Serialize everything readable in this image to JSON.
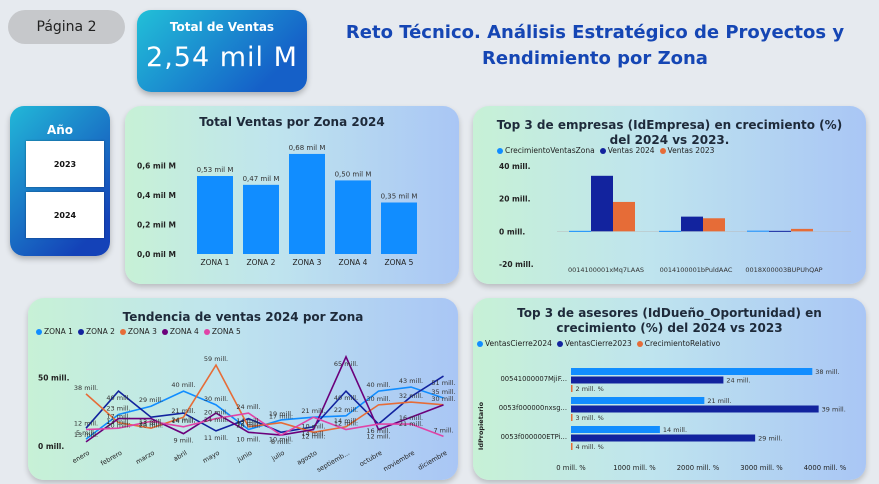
{
  "page_tab": "Página 2",
  "kpi": {
    "label": "Total de Ventas",
    "value": "2,54 mil M"
  },
  "title_line1": "Reto Técnico. Análisis Estratégico de Proyectos y",
  "title_line2": "Rendimiento por Zona",
  "year_slicer": {
    "label": "Año",
    "options": [
      "2023",
      "2024"
    ]
  },
  "colors": {
    "bar": "#118dff",
    "zona1": "#118dff",
    "zona2": "#12239e",
    "zona3": "#e66c37",
    "zona4": "#6b007b",
    "zona5": "#e044a7",
    "top_blue": "#118dff",
    "top_navy": "#12239e",
    "top_orange": "#e66c37"
  },
  "chart_data": [
    {
      "type": "bar",
      "title": "Total Ventas por Zona 2024",
      "categories": [
        "ZONA 1",
        "ZONA 2",
        "ZONA 3",
        "ZONA 4",
        "ZONA 5"
      ],
      "values": [
        0.53,
        0.47,
        0.68,
        0.5,
        0.35
      ],
      "data_labels": [
        "0,53 mil M",
        "0,47 mil M",
        "0,68 mil M",
        "0,50 mil M",
        "0,35 mil M"
      ],
      "yticks": [
        "0,6 mil M",
        "0,4 mil M",
        "0,2 mil M",
        "0,0 mil M"
      ],
      "ylim": [
        0,
        0.7
      ]
    },
    {
      "type": "bar",
      "title": "Top 3 de empresas (IdEmpresa) en crecimiento (%) del 2024 vs 2023.",
      "categories": [
        "0014100001xMq7LAAS",
        "0014100001bPuldAAC",
        "0018X00003BUPUhQAP"
      ],
      "series": [
        {
          "name": "CrecimientoVentasZona",
          "values": [
            0.3,
            0.3,
            0.4
          ]
        },
        {
          "name": "Ventas 2024",
          "values": [
            34,
            9,
            0.3
          ]
        },
        {
          "name": "Ventas 2023",
          "values": [
            18,
            8,
            1.5
          ]
        }
      ],
      "yticks": [
        "40 mill.",
        "20 mill.",
        "0 mill.",
        "-20 mill."
      ],
      "ylim": [
        -20,
        40
      ]
    },
    {
      "type": "line",
      "title": "Tendencia de ventas 2024 por Zona",
      "categories": [
        "enero",
        "febrero",
        "marzo",
        "abril",
        "mayo",
        "junio",
        "julio",
        "agosto",
        "septiemb...",
        "octubre",
        "noviembre",
        "diciembre"
      ],
      "series": [
        {
          "name": "ZONA 1",
          "values": [
            5,
            23,
            29,
            40,
            30,
            12,
            19,
            21,
            22,
            40,
            43,
            35
          ]
        },
        {
          "name": "ZONA 2",
          "values": [
            13,
            40,
            21,
            24,
            11,
            20,
            10,
            14,
            40,
            16,
            36,
            51
          ]
        },
        {
          "name": "ZONA 3",
          "values": [
            38,
            17,
            13,
            21,
            59,
            14,
            17,
            10,
            14,
            30,
            32,
            30
          ]
        },
        {
          "name": "ZONA 4",
          "values": [
            3,
            20,
            20,
            9,
            24,
            10,
            8,
            12,
            65,
            12,
            21,
            30
          ]
        },
        {
          "name": "ZONA 5",
          "values": [
            12,
            13,
            18,
            14,
            20,
            24,
            8,
            21,
            12,
            16,
            16,
            7
          ]
        }
      ],
      "yticks": [
        "50 mill.",
        "0 mill."
      ],
      "ylim": [
        0,
        70
      ],
      "visible_labels": [
        "38 mill.",
        "40 mill.",
        "29 mill.",
        "40 mill.",
        "59 mill.",
        "65 mill.",
        "51 mill.",
        "43 mill.",
        "23 mill.",
        "12 mill.",
        "21 mill.",
        "30 mill.",
        "24 mill.",
        "19 mill.",
        "21 mill.",
        "40 mill.",
        "22 mill.",
        "32 mill.",
        "31 mill.",
        "35 mill.",
        "5 mill.",
        "13 mill.",
        "20 mill.",
        "21 mill.",
        "24 mill.",
        "9 mill.",
        "11 mill.",
        "10 mill.",
        "14 mill.",
        "30 mill.",
        "16 mill.",
        "7 mill.",
        "17 mill.",
        "8 mill."
      ]
    },
    {
      "type": "bar",
      "orientation": "horizontal",
      "title": "Top 3 de asesores (IdDueño_Oportunidad) en crecimiento (%) del 2024 vs 2023",
      "ylabel": "IdPropietario",
      "categories": [
        "00541000007MjiF...",
        "0053f000000nxsg...",
        "0053f000000ETPi..."
      ],
      "series": [
        {
          "name": "VentasCierre2024",
          "values": [
            38,
            21,
            14
          ],
          "labels": [
            "38 mill.",
            "21 mill.",
            "14 mill."
          ]
        },
        {
          "name": "VentasCierre2023",
          "values": [
            24,
            39,
            29
          ],
          "labels": [
            "24 mill.",
            "39 mill.",
            "29 mill."
          ]
        },
        {
          "name": "CrecimientoRelativo",
          "values": [
            2,
            3,
            4
          ],
          "labels": [
            "2 mill. %",
            "3 mill. %",
            "4 mill. %"
          ]
        }
      ],
      "xticks": [
        "0 mill. %",
        "1000 mill. %",
        "2000 mill. %",
        "3000 mill. %",
        "4000 mill. %"
      ],
      "xlim": [
        0,
        40
      ]
    }
  ]
}
